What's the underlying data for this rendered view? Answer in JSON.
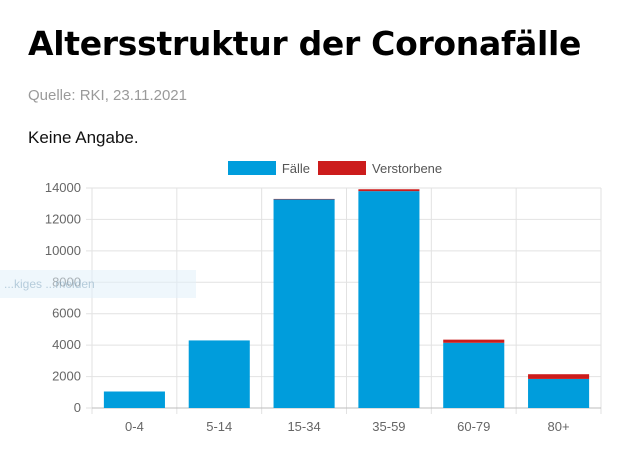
{
  "page": {
    "title": "Altersstruktur der Coronafälle",
    "source": "Quelle: RKI, 23.11.2021",
    "note": "Keine Angabe.",
    "overlay_text": "...kiges ...meiden"
  },
  "colors": {
    "faelle": "#009ddc",
    "verstorbene": "#cc1c1c",
    "grid": "#e2e2e2"
  },
  "chart_data": {
    "type": "bar",
    "stacked": true,
    "categories": [
      "0-4",
      "5-14",
      "15-34",
      "35-59",
      "60-79",
      "80+"
    ],
    "series": [
      {
        "name": "Fälle",
        "values": [
          1050,
          4300,
          13300,
          13800,
          4150,
          1850
        ]
      },
      {
        "name": "Verstorbene",
        "values": [
          0,
          0,
          5,
          120,
          200,
          300
        ]
      }
    ],
    "y_ticks": [
      0,
      2000,
      4000,
      6000,
      8000,
      10000,
      12000,
      14000
    ],
    "ylim": [
      0,
      14000
    ],
    "xlabel": "",
    "ylabel": "",
    "grid": true,
    "legend": "top"
  }
}
